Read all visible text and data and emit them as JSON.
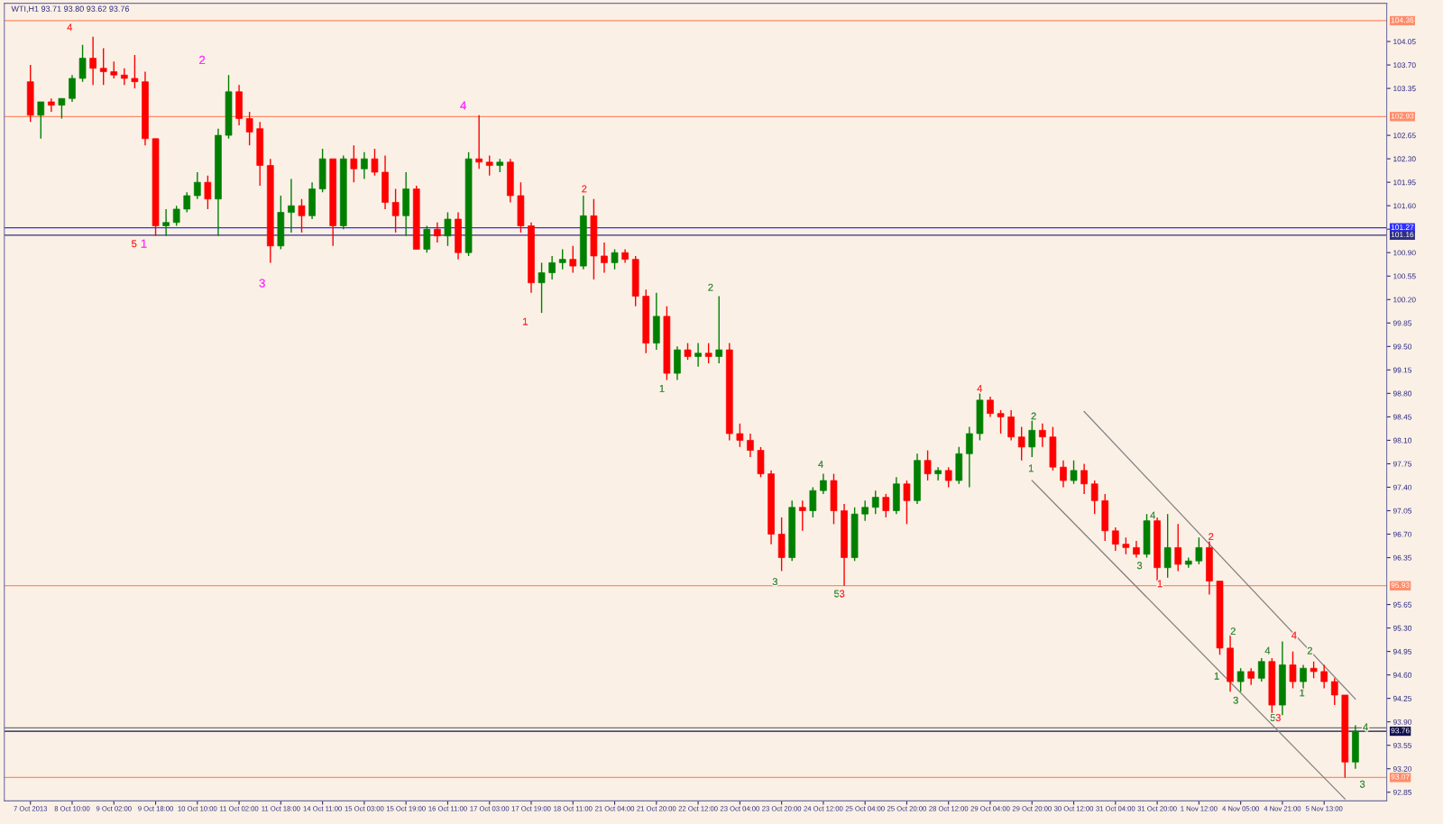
{
  "chart_data": {
    "type": "candlestick",
    "title": "WTI,H1 93.71 93.80 93.62 93.76",
    "categories": [
      "7 Oct 2013",
      null,
      null,
      null,
      "8 Oct 10:00",
      null,
      null,
      null,
      "9 Oct 02:00",
      null,
      null,
      null,
      "9 Oct 18:00",
      null,
      null,
      null,
      "10 Oct 10:00",
      null,
      null,
      null,
      "11 Oct 02:00",
      null,
      null,
      null,
      "11 Oct 18:00",
      null,
      null,
      null,
      "14 Oct 11:00",
      null,
      null,
      null,
      "15 Oct 03:00",
      null,
      null,
      null,
      "15 Oct 19:00",
      null,
      null,
      null,
      "16 Oct 11:00",
      null,
      null,
      null,
      "17 Oct 03:00",
      null,
      null,
      null,
      "17 Oct 19:00",
      null,
      null,
      null,
      "18 Oct 11:00",
      null,
      null,
      null,
      "21 Oct 04:00",
      null,
      null,
      null,
      "21 Oct 20:00",
      null,
      null,
      null,
      "22 Oct 12:00",
      null,
      null,
      null,
      "23 Oct 04:00",
      null,
      null,
      null,
      "23 Oct 20:00",
      null,
      null,
      null,
      "24 Oct 12:00",
      null,
      null,
      null,
      "25 Oct 04:00",
      null,
      null,
      null,
      "25 Oct 20:00",
      null,
      null,
      null,
      "28 Oct 12:00",
      null,
      null,
      null,
      "29 Oct 04:00",
      null,
      null,
      null,
      "29 Oct 20:00",
      null,
      null,
      null,
      "30 Oct 12:00",
      null,
      null,
      null,
      "31 Oct 04:00",
      null,
      null,
      null,
      "31 Oct 20:00",
      null,
      null,
      null,
      "1 Nov 12:00",
      null,
      null,
      null,
      "4 Nov 05:00",
      null,
      null,
      null,
      "4 Nov 21:00",
      null,
      null,
      null,
      "5 Nov 13:00",
      null,
      null,
      null
    ],
    "ohlc": [
      [
        103.45,
        103.7,
        102.85,
        102.95
      ],
      [
        102.95,
        103.15,
        102.6,
        103.15
      ],
      [
        103.15,
        103.2,
        103.0,
        103.1
      ],
      [
        103.1,
        103.2,
        102.9,
        103.2
      ],
      [
        103.2,
        103.55,
        103.15,
        103.5
      ],
      [
        103.5,
        104.0,
        103.45,
        103.8
      ],
      [
        103.8,
        104.12,
        103.4,
        103.65
      ],
      [
        103.65,
        103.95,
        103.4,
        103.6
      ],
      [
        103.6,
        103.75,
        103.5,
        103.55
      ],
      [
        103.55,
        103.65,
        103.4,
        103.5
      ],
      [
        103.5,
        103.85,
        103.35,
        103.45
      ],
      [
        103.45,
        103.6,
        102.5,
        102.6
      ],
      [
        102.6,
        102.6,
        101.15,
        101.3
      ],
      [
        101.3,
        101.55,
        101.15,
        101.35
      ],
      [
        101.35,
        101.6,
        101.3,
        101.55
      ],
      [
        101.55,
        101.8,
        101.5,
        101.75
      ],
      [
        101.75,
        102.1,
        101.7,
        101.95
      ],
      [
        101.95,
        102.05,
        101.55,
        101.7
      ],
      [
        101.7,
        102.75,
        101.15,
        102.65
      ],
      [
        102.65,
        103.55,
        102.6,
        103.3
      ],
      [
        103.3,
        103.4,
        102.8,
        102.9
      ],
      [
        102.9,
        103.0,
        102.5,
        102.7
      ],
      [
        102.75,
        102.85,
        101.9,
        102.2
      ],
      [
        102.2,
        102.3,
        100.75,
        101.0
      ],
      [
        101.0,
        101.75,
        100.95,
        101.5
      ],
      [
        101.5,
        102.0,
        101.2,
        101.6
      ],
      [
        101.6,
        101.7,
        101.2,
        101.45
      ],
      [
        101.45,
        101.95,
        101.4,
        101.85
      ],
      [
        101.85,
        102.45,
        101.8,
        102.3
      ],
      [
        102.3,
        102.3,
        101.0,
        101.3
      ],
      [
        101.3,
        102.35,
        101.25,
        102.3
      ],
      [
        102.3,
        102.5,
        101.95,
        102.15
      ],
      [
        102.15,
        102.4,
        102.0,
        102.3
      ],
      [
        102.3,
        102.45,
        102.05,
        102.1
      ],
      [
        102.1,
        102.35,
        101.55,
        101.65
      ],
      [
        101.65,
        101.85,
        101.2,
        101.45
      ],
      [
        101.45,
        102.1,
        101.15,
        101.85
      ],
      [
        101.85,
        101.9,
        100.95,
        100.95
      ],
      [
        100.95,
        101.3,
        100.9,
        101.25
      ],
      [
        101.25,
        101.35,
        101.05,
        101.15
      ],
      [
        101.15,
        101.5,
        101.0,
        101.4
      ],
      [
        101.4,
        101.5,
        100.8,
        100.9
      ],
      [
        100.9,
        102.4,
        100.85,
        102.3
      ],
      [
        102.3,
        102.95,
        102.15,
        102.25
      ],
      [
        102.25,
        102.35,
        102.05,
        102.2
      ],
      [
        102.2,
        102.3,
        102.1,
        102.25
      ],
      [
        102.25,
        102.3,
        101.65,
        101.75
      ],
      [
        101.75,
        101.95,
        101.2,
        101.3
      ],
      [
        101.3,
        101.35,
        100.3,
        100.45
      ],
      [
        100.45,
        100.75,
        100.0,
        100.6
      ],
      [
        100.6,
        100.85,
        100.5,
        100.75
      ],
      [
        100.75,
        100.95,
        100.65,
        100.8
      ],
      [
        100.8,
        101.0,
        100.6,
        100.7
      ],
      [
        100.7,
        101.75,
        100.65,
        101.45
      ],
      [
        101.45,
        101.7,
        100.5,
        100.85
      ],
      [
        100.85,
        101.05,
        100.6,
        100.75
      ],
      [
        100.75,
        100.95,
        100.65,
        100.9
      ],
      [
        100.9,
        100.95,
        100.75,
        100.8
      ],
      [
        100.8,
        100.85,
        100.1,
        100.25
      ],
      [
        100.25,
        100.35,
        99.4,
        99.55
      ],
      [
        99.55,
        100.3,
        99.45,
        99.95
      ],
      [
        99.95,
        100.1,
        99.0,
        99.1
      ],
      [
        99.1,
        99.5,
        99.0,
        99.45
      ],
      [
        99.45,
        99.55,
        99.3,
        99.35
      ],
      [
        99.35,
        99.55,
        99.2,
        99.4
      ],
      [
        99.4,
        99.55,
        99.25,
        99.35
      ],
      [
        99.35,
        100.25,
        99.25,
        99.45
      ],
      [
        99.45,
        99.55,
        98.1,
        98.2
      ],
      [
        98.2,
        98.35,
        98.0,
        98.1
      ],
      [
        98.1,
        98.2,
        97.85,
        97.95
      ],
      [
        97.95,
        98.0,
        97.55,
        97.6
      ],
      [
        97.6,
        97.65,
        96.55,
        96.7
      ],
      [
        96.7,
        96.95,
        96.15,
        96.35
      ],
      [
        96.35,
        97.2,
        96.3,
        97.1
      ],
      [
        97.1,
        97.2,
        96.75,
        97.05
      ],
      [
        97.05,
        97.4,
        96.95,
        97.35
      ],
      [
        97.35,
        97.6,
        97.3,
        97.5
      ],
      [
        97.5,
        97.6,
        96.85,
        97.05
      ],
      [
        97.05,
        97.15,
        95.93,
        96.35
      ],
      [
        96.35,
        97.1,
        96.3,
        97.0
      ],
      [
        97.0,
        97.2,
        96.9,
        97.1
      ],
      [
        97.1,
        97.35,
        97.0,
        97.25
      ],
      [
        97.25,
        97.3,
        96.95,
        97.05
      ],
      [
        97.05,
        97.55,
        97.0,
        97.45
      ],
      [
        97.45,
        97.5,
        96.85,
        97.2
      ],
      [
        97.2,
        97.9,
        97.15,
        97.8
      ],
      [
        97.8,
        97.95,
        97.5,
        97.6
      ],
      [
        97.6,
        97.7,
        97.5,
        97.65
      ],
      [
        97.65,
        97.7,
        97.4,
        97.5
      ],
      [
        97.5,
        98.0,
        97.45,
        97.9
      ],
      [
        97.9,
        98.3,
        97.4,
        98.2
      ],
      [
        98.2,
        98.8,
        98.1,
        98.7
      ],
      [
        98.7,
        98.75,
        98.45,
        98.5
      ],
      [
        98.5,
        98.55,
        98.2,
        98.45
      ],
      [
        98.45,
        98.55,
        98.1,
        98.15
      ],
      [
        98.15,
        98.3,
        97.8,
        98.0
      ],
      [
        98.0,
        98.45,
        97.85,
        98.25
      ],
      [
        98.25,
        98.35,
        98.0,
        98.15
      ],
      [
        98.15,
        98.3,
        97.65,
        97.7
      ],
      [
        97.7,
        97.8,
        97.4,
        97.5
      ],
      [
        97.5,
        97.8,
        97.45,
        97.65
      ],
      [
        97.65,
        97.75,
        97.3,
        97.45
      ],
      [
        97.45,
        97.5,
        97.0,
        97.2
      ],
      [
        97.2,
        97.3,
        96.6,
        96.75
      ],
      [
        96.75,
        96.8,
        96.45,
        96.55
      ],
      [
        96.55,
        96.65,
        96.4,
        96.5
      ],
      [
        96.5,
        96.6,
        96.35,
        96.4
      ],
      [
        96.4,
        97.0,
        96.35,
        96.9
      ],
      [
        96.9,
        96.95,
        96.0,
        96.2
      ],
      [
        96.2,
        97.0,
        96.05,
        96.5
      ],
      [
        96.5,
        96.85,
        96.15,
        96.25
      ],
      [
        96.25,
        96.35,
        96.2,
        96.3
      ],
      [
        96.3,
        96.65,
        96.25,
        96.5
      ],
      [
        96.5,
        96.6,
        95.8,
        96.0
      ],
      [
        96.0,
        96.0,
        94.9,
        95.0
      ],
      [
        95.0,
        95.2,
        94.35,
        94.5
      ],
      [
        94.5,
        94.7,
        94.35,
        94.65
      ],
      [
        94.65,
        94.7,
        94.45,
        94.55
      ],
      [
        94.55,
        94.85,
        94.5,
        94.8
      ],
      [
        94.8,
        94.85,
        94.0,
        94.15
      ],
      [
        94.15,
        95.1,
        94.0,
        94.75
      ],
      [
        94.75,
        94.95,
        94.4,
        94.5
      ],
      [
        94.5,
        94.75,
        94.35,
        94.7
      ],
      [
        94.7,
        94.8,
        94.55,
        94.65
      ],
      [
        94.65,
        94.75,
        94.4,
        94.5
      ],
      [
        94.5,
        94.55,
        94.15,
        94.3
      ],
      [
        94.3,
        94.3,
        93.07,
        93.3
      ],
      [
        93.3,
        93.85,
        93.2,
        93.76
      ]
    ],
    "colors": [
      "#ff0000",
      "#008000",
      "#ff0000",
      "#008000",
      "#008000",
      "#008000",
      "#ff0000",
      "#ff0000",
      "#ff0000",
      "#ff0000",
      "#ff0000",
      "#ff0000",
      "#ff0000",
      "#008000",
      "#008000",
      "#008000",
      "#008000",
      "#ff0000",
      "#008000",
      "#008000",
      "#ff0000",
      "#ff0000",
      "#ff0000",
      "#ff0000",
      "#008000",
      "#008000",
      "#ff0000",
      "#008000",
      "#008000",
      "#ff0000",
      "#008000",
      "#ff0000",
      "#008000",
      "#ff0000",
      "#ff0000",
      "#ff0000",
      "#008000",
      "#ff0000",
      "#008000",
      "#ff0000",
      "#008000",
      "#ff0000",
      "#008000",
      "#ff0000",
      "#ff0000",
      "#008000",
      "#ff0000",
      "#ff0000",
      "#ff0000",
      "#008000",
      "#008000",
      "#008000",
      "#ff0000",
      "#008000",
      "#ff0000",
      "#ff0000",
      "#008000",
      "#ff0000",
      "#ff0000",
      "#ff0000",
      "#008000",
      "#ff0000",
      "#008000",
      "#ff0000",
      "#008000",
      "#ff0000",
      "#008000",
      "#ff0000",
      "#ff0000",
      "#ff0000",
      "#ff0000",
      "#ff0000",
      "#ff0000",
      "#008000",
      "#ff0000",
      "#008000",
      "#008000",
      "#ff0000",
      "#ff0000",
      "#008000",
      "#008000",
      "#008000",
      "#ff0000",
      "#008000",
      "#ff0000",
      "#008000",
      "#ff0000",
      "#008000",
      "#ff0000",
      "#008000",
      "#008000",
      "#008000",
      "#ff0000",
      "#ff0000",
      "#ff0000",
      "#ff0000",
      "#008000",
      "#ff0000",
      "#ff0000",
      "#ff0000",
      "#008000",
      "#ff0000",
      "#ff0000",
      "#ff0000",
      "#ff0000",
      "#ff0000",
      "#ff0000",
      "#008000",
      "#ff0000",
      "#008000",
      "#ff0000",
      "#008000",
      "#008000",
      "#ff0000",
      "#ff0000",
      "#ff0000",
      "#008000",
      "#ff0000",
      "#008000",
      "#ff0000",
      "#008000",
      "#ff0000",
      "#008000",
      "#ff0000",
      "#ff0000",
      "#ff0000",
      "#ff0000",
      "#008000"
    ],
    "series": [
      {
        "type": "line",
        "color": "#808080",
        "values": [
          null,
          null,
          null,
          null,
          null,
          null,
          null,
          null,
          null,
          null,
          null,
          null,
          null,
          null,
          null,
          null,
          null,
          null,
          null,
          null,
          null,
          null,
          null,
          null,
          null,
          null,
          null,
          null,
          null,
          null,
          null,
          null,
          null,
          null,
          null,
          null,
          null,
          null,
          null,
          null,
          null,
          null,
          null,
          null,
          null,
          null,
          null,
          null,
          null,
          null,
          null,
          null,
          null,
          null,
          null,
          null,
          null,
          null,
          null,
          null,
          null,
          null,
          null,
          null,
          null,
          null,
          null,
          null,
          null,
          null,
          null,
          null,
          null,
          null,
          null,
          null,
          null,
          null,
          null,
          null,
          null,
          null,
          null,
          null,
          null,
          null,
          null,
          null,
          null,
          null,
          null,
          null,
          null,
          null,
          null,
          null,
          null,
          null,
          null,
          null,
          null,
          98.53,
          null,
          null,
          null,
          null,
          null,
          null,
          null,
          null,
          null,
          null,
          null,
          null,
          null,
          null,
          null,
          null,
          null,
          null,
          null,
          null,
          null,
          null,
          null,
          null,
          null,
          94.24
        ]
      },
      {
        "type": "line",
        "color": "#808080",
        "values": [
          null,
          null,
          null,
          null,
          null,
          null,
          null,
          null,
          null,
          null,
          null,
          null,
          null,
          null,
          null,
          null,
          null,
          null,
          null,
          null,
          null,
          null,
          null,
          null,
          null,
          null,
          null,
          null,
          null,
          null,
          null,
          null,
          null,
          null,
          null,
          null,
          null,
          null,
          null,
          null,
          null,
          null,
          null,
          null,
          null,
          null,
          null,
          null,
          null,
          null,
          null,
          null,
          null,
          null,
          null,
          null,
          null,
          null,
          null,
          null,
          null,
          null,
          null,
          null,
          null,
          null,
          null,
          null,
          null,
          null,
          null,
          null,
          null,
          null,
          null,
          null,
          null,
          null,
          null,
          null,
          null,
          null,
          null,
          null,
          null,
          null,
          null,
          null,
          null,
          null,
          null,
          null,
          null,
          null,
          null,
          null,
          97.5,
          null,
          null,
          null,
          null,
          null,
          null,
          null,
          null,
          null,
          null,
          null,
          null,
          null,
          null,
          null,
          null,
          null,
          null,
          null,
          null,
          null,
          null,
          null,
          null,
          null,
          null,
          null,
          null,
          null,
          92.75,
          null
        ]
      }
    ],
    "annotations": [
      "4",
      "5",
      "1",
      "2",
      "3",
      "4",
      "1",
      "2",
      "1",
      "2",
      "3",
      "4",
      "5",
      "3",
      "4",
      "1",
      "2",
      "3",
      "4",
      "1",
      "2",
      "1",
      "2",
      "3",
      "4",
      "5",
      "3",
      "4",
      "1",
      "2",
      "4",
      "3"
    ],
    "ylim": [
      92.72,
      104.62
    ],
    "yticks": [
      92.85,
      {
        "value": 93.2,
        "label": "93.20"
      },
      93.55,
      {
        "value": 93.9,
        "label": "93.90"
      },
      94.25,
      {
        "value": 94.6,
        "label": "94.60"
      },
      94.95,
      {
        "value": 95.3,
        "label": "95.30"
      },
      95.65,
      96.35,
      {
        "value": 96.7,
        "label": "96.70"
      },
      97.05,
      {
        "value": 97.4,
        "label": "97.40"
      },
      97.75,
      {
        "value": 98.1,
        "label": "98.10"
      },
      98.45,
      {
        "value": 98.8,
        "label": "98.80"
      },
      99.15,
      {
        "value": 99.5,
        "label": "99.50"
      },
      99.85,
      {
        "value": 100.2,
        "label": "100.20"
      },
      100.55,
      {
        "value": 100.9,
        "label": "100.90"
      },
      {
        "value": 101.25,
        "label": null
      },
      {
        "value": 101.6,
        "label": "101.60"
      },
      101.95,
      {
        "value": 102.3,
        "label": "102.30"
      },
      102.65,
      103.35,
      {
        "value": 103.7,
        "label": "103.70"
      },
      104.05
    ],
    "ref_lines": [
      {
        "axis": "y",
        "value": 104.36,
        "label": "104.36",
        "color": "#ff8c69"
      },
      {
        "axis": "y",
        "value": 102.93,
        "label": "102.93",
        "color": "#ff8c69"
      },
      {
        "axis": "y",
        "value": 101.27,
        "label": "101.27",
        "color": "#3030ff"
      },
      {
        "axis": "y",
        "value": 101.16,
        "label": "101.16",
        "color": "#303080"
      },
      {
        "axis": "y",
        "value": 95.93,
        "label": "95.93",
        "color": "#ff8c69"
      },
      {
        "axis": "y",
        "value": 93.81,
        "color": "#707070"
      },
      {
        "axis": "y",
        "value": 93.76,
        "label": "93.76",
        "color": "#101050"
      },
      {
        "axis": "y",
        "value": 93.07,
        "label": "93.07",
        "color": "#ff8c69"
      }
    ]
  }
}
